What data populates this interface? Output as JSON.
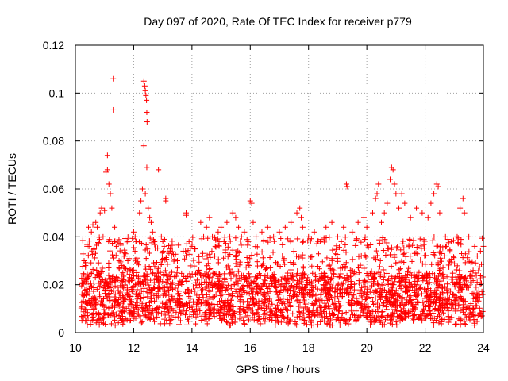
{
  "chart_data": {
    "type": "scatter",
    "title": "Day 097 of 2020, Rate Of TEC Index for receiver p779",
    "xlabel": "GPS time / hours",
    "ylabel": "ROTI / TECUs",
    "xlim": [
      10,
      24
    ],
    "ylim": [
      0,
      0.12
    ],
    "grid": true,
    "marker": "plus",
    "color": "#ff0000",
    "x_ticks": [
      10,
      12,
      14,
      16,
      18,
      20,
      22,
      24
    ],
    "x_tick_labels": [
      "10",
      "12",
      "14",
      "16",
      "18",
      "20",
      "22",
      "24"
    ],
    "y_ticks": [
      0,
      0.02,
      0.04,
      0.06,
      0.08,
      0.1,
      0.12
    ],
    "y_tick_labels": [
      "0",
      "0.02",
      "0.04",
      "0.06",
      "0.08",
      "0.1",
      "0.12"
    ],
    "series": [
      {
        "name": "ROTI",
        "points": [
          [
            10.3,
            0.03
          ],
          [
            10.35,
            0.028
          ],
          [
            10.4,
            0.036
          ],
          [
            10.45,
            0.044
          ],
          [
            10.55,
            0.042
          ],
          [
            10.6,
            0.045
          ],
          [
            10.7,
            0.046
          ],
          [
            10.75,
            0.044
          ],
          [
            10.85,
            0.05
          ],
          [
            10.9,
            0.052
          ],
          [
            10.95,
            0.04
          ],
          [
            11.0,
            0.051
          ],
          [
            11.05,
            0.067
          ],
          [
            11.1,
            0.068
          ],
          [
            11.1,
            0.074
          ],
          [
            11.15,
            0.062
          ],
          [
            11.2,
            0.058
          ],
          [
            11.25,
            0.052
          ],
          [
            11.3,
            0.106
          ],
          [
            11.3,
            0.093
          ],
          [
            11.35,
            0.044
          ],
          [
            11.4,
            0.036
          ],
          [
            11.5,
            0.03
          ],
          [
            11.6,
            0.028
          ],
          [
            11.7,
            0.032
          ],
          [
            11.8,
            0.03
          ],
          [
            11.9,
            0.026
          ],
          [
            12.0,
            0.042
          ],
          [
            12.05,
            0.04
          ],
          [
            12.1,
            0.038
          ],
          [
            12.2,
            0.05
          ],
          [
            12.25,
            0.055
          ],
          [
            12.3,
            0.06
          ],
          [
            12.35,
            0.105
          ],
          [
            12.38,
            0.103
          ],
          [
            12.4,
            0.101
          ],
          [
            12.42,
            0.099
          ],
          [
            12.44,
            0.097
          ],
          [
            12.45,
            0.092
          ],
          [
            12.46,
            0.088
          ],
          [
            12.35,
            0.078
          ],
          [
            12.45,
            0.069
          ],
          [
            12.4,
            0.058
          ],
          [
            12.5,
            0.052
          ],
          [
            12.55,
            0.048
          ],
          [
            12.6,
            0.046
          ],
          [
            12.65,
            0.042
          ],
          [
            12.7,
            0.038
          ],
          [
            12.85,
            0.068
          ],
          [
            12.95,
            0.04
          ],
          [
            13.0,
            0.038
          ],
          [
            13.05,
            0.036
          ],
          [
            13.1,
            0.056
          ],
          [
            13.1,
            0.055
          ],
          [
            13.3,
            0.032
          ],
          [
            13.5,
            0.03
          ],
          [
            13.7,
            0.034
          ],
          [
            13.8,
            0.05
          ],
          [
            13.8,
            0.049
          ],
          [
            13.9,
            0.038
          ],
          [
            14.0,
            0.036
          ],
          [
            14.1,
            0.035
          ],
          [
            14.3,
            0.046
          ],
          [
            14.4,
            0.04
          ],
          [
            14.5,
            0.044
          ],
          [
            14.6,
            0.048
          ],
          [
            14.7,
            0.04
          ],
          [
            14.8,
            0.036
          ],
          [
            14.9,
            0.042
          ],
          [
            15.0,
            0.044
          ],
          [
            15.1,
            0.038
          ],
          [
            15.2,
            0.046
          ],
          [
            15.3,
            0.04
          ],
          [
            15.4,
            0.05
          ],
          [
            15.5,
            0.048
          ],
          [
            15.6,
            0.044
          ],
          [
            15.7,
            0.04
          ],
          [
            15.8,
            0.042
          ],
          [
            16.0,
            0.055
          ],
          [
            16.05,
            0.054
          ],
          [
            16.1,
            0.046
          ],
          [
            16.2,
            0.04
          ],
          [
            16.4,
            0.042
          ],
          [
            16.6,
            0.044
          ],
          [
            16.8,
            0.04
          ],
          [
            17.0,
            0.042
          ],
          [
            17.2,
            0.044
          ],
          [
            17.4,
            0.046
          ],
          [
            17.6,
            0.05
          ],
          [
            17.7,
            0.052
          ],
          [
            17.75,
            0.048
          ],
          [
            17.8,
            0.044
          ],
          [
            18.0,
            0.04
          ],
          [
            18.2,
            0.042
          ],
          [
            18.4,
            0.038
          ],
          [
            18.6,
            0.044
          ],
          [
            18.8,
            0.046
          ],
          [
            19.0,
            0.04
          ],
          [
            19.2,
            0.044
          ],
          [
            19.3,
            0.062
          ],
          [
            19.32,
            0.061
          ],
          [
            19.5,
            0.042
          ],
          [
            19.7,
            0.046
          ],
          [
            19.9,
            0.048
          ],
          [
            20.0,
            0.044
          ],
          [
            20.2,
            0.05
          ],
          [
            20.3,
            0.056
          ],
          [
            20.35,
            0.058
          ],
          [
            20.4,
            0.062
          ],
          [
            20.5,
            0.046
          ],
          [
            20.6,
            0.05
          ],
          [
            20.7,
            0.054
          ],
          [
            20.8,
            0.064
          ],
          [
            20.85,
            0.069
          ],
          [
            20.9,
            0.068
          ],
          [
            20.95,
            0.062
          ],
          [
            21.0,
            0.058
          ],
          [
            21.1,
            0.052
          ],
          [
            21.2,
            0.058
          ],
          [
            21.3,
            0.054
          ],
          [
            21.5,
            0.048
          ],
          [
            21.7,
            0.052
          ],
          [
            21.9,
            0.05
          ],
          [
            22.1,
            0.048
          ],
          [
            22.2,
            0.054
          ],
          [
            22.3,
            0.058
          ],
          [
            22.4,
            0.062
          ],
          [
            22.45,
            0.061
          ],
          [
            22.5,
            0.05
          ],
          [
            22.7,
            0.04
          ],
          [
            22.9,
            0.038
          ],
          [
            23.1,
            0.04
          ],
          [
            23.2,
            0.052
          ],
          [
            23.3,
            0.056
          ],
          [
            23.35,
            0.05
          ],
          [
            23.5,
            0.04
          ],
          [
            23.7,
            0.036
          ],
          [
            23.9,
            0.034
          ],
          [
            24.0,
            0.036
          ]
        ],
        "bulk": {
          "x_range": [
            10.2,
            24.0
          ],
          "y_floor": 0.003,
          "y_core": [
            0.005,
            0.025
          ],
          "y_upper": 0.04
        }
      }
    ]
  }
}
